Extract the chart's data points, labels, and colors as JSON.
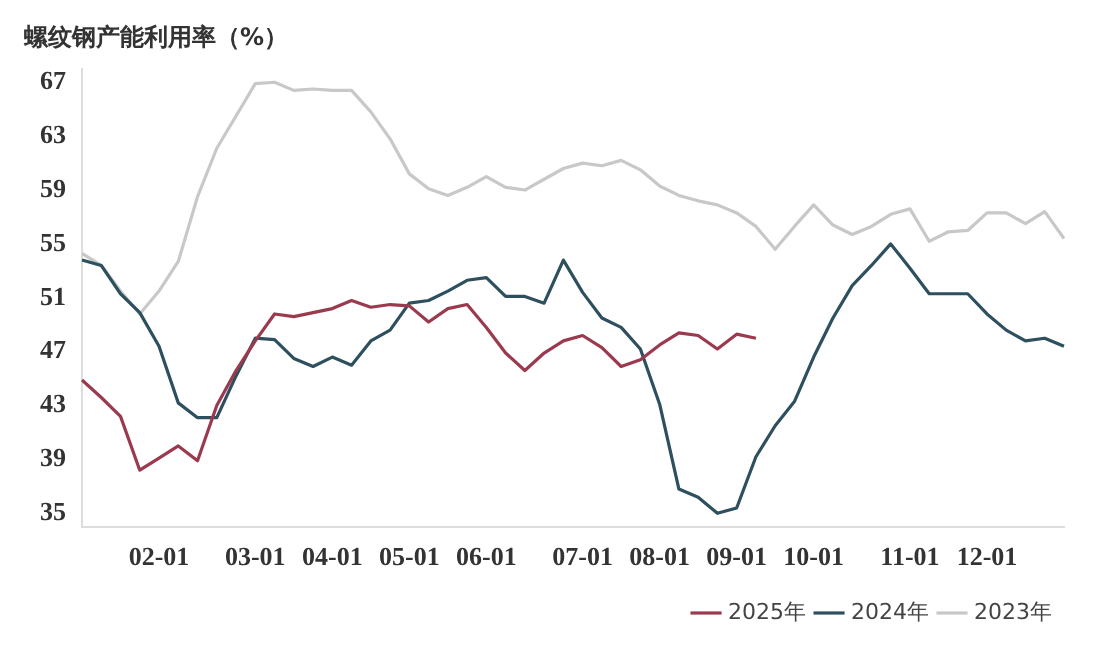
{
  "chart_data": {
    "type": "line",
    "title": "螺纹钢产能利用率（%）",
    "categories": [
      null,
      null,
      null,
      null,
      "02-01",
      null,
      null,
      null,
      null,
      "03-01",
      null,
      null,
      null,
      "04-01",
      null,
      null,
      null,
      "05-01",
      null,
      null,
      null,
      "06-01",
      null,
      null,
      null,
      null,
      "07-01",
      null,
      null,
      null,
      "08-01",
      null,
      null,
      null,
      "09-01",
      null,
      null,
      null,
      "10-01",
      null,
      null,
      null,
      null,
      "11-01",
      null,
      null,
      null,
      "12-01",
      null,
      null,
      null,
      null
    ],
    "series": [
      {
        "name": "2025年",
        "color": "#9b3a4e",
        "values": [
          44.9,
          43.6,
          42.2,
          38.2,
          39.1,
          40,
          38.9,
          43,
          45.6,
          47.8,
          49.8,
          49.6,
          49.9,
          50.2,
          50.8,
          50.3,
          50.5,
          50.4,
          49.2,
          50.2,
          50.5,
          48.8,
          46.9,
          45.6,
          46.9,
          47.8,
          48.2,
          47.3,
          45.9,
          46.4,
          47.5,
          48.4,
          48.2,
          47.2,
          48.3,
          48,
          null,
          null,
          null,
          null,
          null,
          null,
          null,
          null,
          null,
          null,
          null,
          null,
          null,
          null,
          null,
          null
        ]
      },
      {
        "name": "2024年",
        "color": "#2e4f5e",
        "values": [
          53.8,
          53.4,
          51.3,
          49.9,
          47.4,
          43.2,
          42.1,
          42.1,
          45.2,
          48,
          47.9,
          46.5,
          45.9,
          46.6,
          46,
          47.8,
          48.6,
          50.6,
          50.8,
          51.5,
          52.3,
          52.5,
          51.1,
          51.1,
          50.6,
          53.8,
          51.4,
          49.5,
          48.8,
          47.2,
          43.1,
          36.8,
          36.2,
          35,
          35.4,
          39.2,
          41.5,
          43.3,
          46.6,
          49.5,
          51.9,
          53.4,
          55,
          53.2,
          51.3,
          51.3,
          51.3,
          49.8,
          48.6,
          47.8,
          48,
          47.4
        ]
      },
      {
        "name": "2023年",
        "color": "#c8c8c8",
        "values": [
          54.3,
          53.4,
          51.5,
          49.8,
          51.5,
          53.7,
          58.5,
          62.1,
          64.5,
          66.9,
          67,
          66.4,
          66.5,
          66.4,
          66.4,
          64.8,
          62.8,
          60.2,
          59.1,
          58.6,
          59.2,
          60,
          59.2,
          59,
          59.8,
          60.6,
          61,
          60.8,
          61.2,
          60.5,
          59.3,
          58.6,
          58.2,
          57.9,
          57.3,
          56.3,
          54.6,
          56.3,
          57.9,
          56.4,
          55.7,
          56.3,
          57.2,
          57.6,
          55.2,
          55.9,
          56,
          57.3,
          57.3,
          56.5,
          57.4,
          55.4
        ]
      }
    ],
    "ylim": [
      34,
      68
    ],
    "yticks": [
      35,
      39,
      43,
      47,
      51,
      55,
      59,
      63,
      67
    ],
    "grid": false,
    "legend": "bottom",
    "marker": "none",
    "line_style": "solid"
  }
}
